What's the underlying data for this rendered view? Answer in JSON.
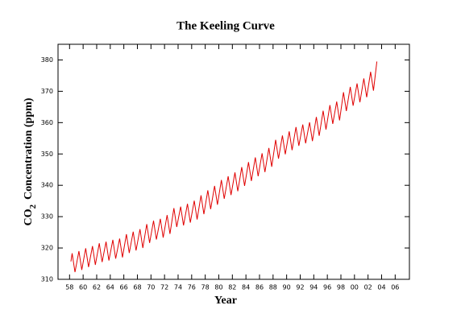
{
  "chart_data": {
    "type": "line",
    "title": "The Keeling Curve",
    "x_label": "Year",
    "y_label": {
      "main": "CO",
      "sub": "2",
      "rest": "Concentration  (ppm)"
    },
    "color": "#e00000",
    "xlim": [
      1956.3,
      2008.1
    ],
    "ylim": [
      310,
      385
    ],
    "xticks": [
      {
        "value": 1958,
        "label": "58"
      },
      {
        "value": 1960,
        "label": "60"
      },
      {
        "value": 1962,
        "label": "62"
      },
      {
        "value": 1964,
        "label": "64"
      },
      {
        "value": 1966,
        "label": "66"
      },
      {
        "value": 1968,
        "label": "68"
      },
      {
        "value": 1970,
        "label": "70"
      },
      {
        "value": 1972,
        "label": "72"
      },
      {
        "value": 1974,
        "label": "74"
      },
      {
        "value": 1976,
        "label": "76"
      },
      {
        "value": 1978,
        "label": "78"
      },
      {
        "value": 1980,
        "label": "80"
      },
      {
        "value": 1982,
        "label": "82"
      },
      {
        "value": 1984,
        "label": "84"
      },
      {
        "value": 1986,
        "label": "86"
      },
      {
        "value": 1988,
        "label": "88"
      },
      {
        "value": 1990,
        "label": "90"
      },
      {
        "value": 1992,
        "label": "92"
      },
      {
        "value": 1994,
        "label": "94"
      },
      {
        "value": 1996,
        "label": "96"
      },
      {
        "value": 1998,
        "label": "98"
      },
      {
        "value": 2000,
        "label": "00"
      },
      {
        "value": 2002,
        "label": "02"
      },
      {
        "value": 2004,
        "label": "04"
      },
      {
        "value": 2006,
        "label": "06"
      }
    ],
    "yticks": [
      310,
      320,
      330,
      340,
      350,
      360,
      370,
      380
    ],
    "x": [
      1958.2,
      1958.38,
      1958.8,
      1959.38,
      1959.8,
      1960.38,
      1960.8,
      1961.38,
      1961.8,
      1962.38,
      1962.8,
      1963.38,
      1963.8,
      1964.38,
      1964.8,
      1965.38,
      1965.8,
      1966.38,
      1966.8,
      1967.38,
      1967.8,
      1968.38,
      1968.8,
      1969.38,
      1969.8,
      1970.38,
      1970.8,
      1971.38,
      1971.8,
      1972.38,
      1972.8,
      1973.38,
      1973.8,
      1974.38,
      1974.8,
      1975.38,
      1975.8,
      1976.38,
      1976.8,
      1977.38,
      1977.8,
      1978.38,
      1978.8,
      1979.38,
      1979.8,
      1980.38,
      1980.8,
      1981.38,
      1981.8,
      1982.38,
      1982.8,
      1983.38,
      1983.8,
      1984.38,
      1984.8,
      1985.38,
      1985.8,
      1986.38,
      1986.8,
      1987.38,
      1987.8,
      1988.38,
      1988.8,
      1989.38,
      1989.8,
      1990.38,
      1990.8,
      1991.38,
      1991.8,
      1992.38,
      1992.8,
      1993.38,
      1993.8,
      1994.38,
      1994.8,
      1995.38,
      1995.8,
      1996.38,
      1996.8,
      1997.38,
      1997.8,
      1998.38,
      1998.8,
      1999.38,
      1999.8,
      2000.38,
      2000.8,
      2001.38,
      2001.8,
      2002.38,
      2002.8,
      2003.3
    ],
    "values": [
      315.7,
      318.3,
      312.3,
      319.0,
      313.0,
      319.9,
      313.9,
      320.6,
      314.6,
      321.5,
      315.5,
      322.0,
      316.0,
      322.6,
      316.6,
      323.0,
      317.0,
      324.4,
      318.4,
      325.2,
      319.2,
      326.0,
      320.0,
      327.6,
      321.6,
      328.7,
      322.7,
      329.3,
      323.3,
      330.5,
      324.5,
      332.7,
      326.7,
      333.2,
      327.2,
      334.1,
      328.1,
      335.1,
      329.1,
      336.8,
      330.8,
      338.4,
      332.4,
      339.8,
      333.8,
      341.7,
      335.7,
      342.9,
      336.9,
      344.1,
      338.1,
      345.8,
      339.8,
      347.4,
      341.4,
      348.9,
      342.9,
      350.2,
      344.2,
      351.9,
      345.9,
      354.5,
      348.5,
      355.9,
      349.9,
      357.2,
      351.2,
      358.6,
      352.6,
      359.4,
      353.4,
      360.1,
      354.1,
      361.8,
      355.8,
      363.8,
      357.8,
      365.6,
      359.6,
      366.7,
      360.7,
      369.7,
      363.7,
      371.4,
      365.4,
      372.5,
      366.5,
      374.1,
      368.1,
      376.2,
      370.2,
      379.5
    ]
  }
}
